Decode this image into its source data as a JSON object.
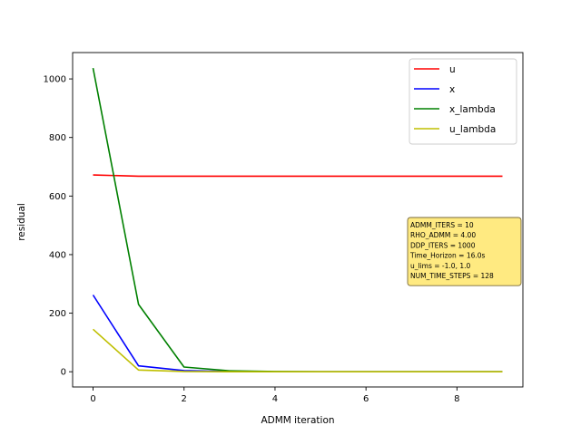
{
  "chart_data": {
    "type": "line",
    "title": "",
    "xlabel": "ADMM iteration",
    "ylabel": "residual",
    "x": [
      0,
      1,
      2,
      3,
      4,
      5,
      6,
      7,
      8,
      9
    ],
    "xlim": [
      -0.45,
      9.45
    ],
    "ylim": [
      -52,
      1090
    ],
    "xticks": [
      0,
      2,
      4,
      6,
      8
    ],
    "yticks": [
      0,
      200,
      400,
      600,
      800,
      1000
    ],
    "grid": false,
    "legend_position": "top-right",
    "series": [
      {
        "name": "u",
        "color": "#ff0000",
        "values": [
          672,
          668,
          668,
          668,
          668,
          668,
          668,
          668,
          668,
          668
        ]
      },
      {
        "name": "x",
        "color": "#0000ff",
        "values": [
          262,
          20,
          4,
          1,
          0,
          0,
          0,
          0,
          0,
          0
        ]
      },
      {
        "name": "x_lambda",
        "color": "#008000",
        "values": [
          1037,
          230,
          16,
          3,
          1,
          0,
          0,
          0,
          0,
          0
        ]
      },
      {
        "name": "u_lambda",
        "color": "#bfbf00",
        "values": [
          145,
          6,
          1,
          0,
          0,
          0,
          0,
          0,
          0,
          0
        ]
      }
    ],
    "annotation": {
      "lines": [
        "ADMM_ITERS = 10",
        "RHO_ADMM = 4.00",
        "DDP_ITERS = 1000",
        "Time_Horizon = 16.0s",
        "u_lims = -1.0, 1.0",
        "NUM_TIME_STEPS = 128"
      ],
      "background": "#ffe97a"
    }
  }
}
